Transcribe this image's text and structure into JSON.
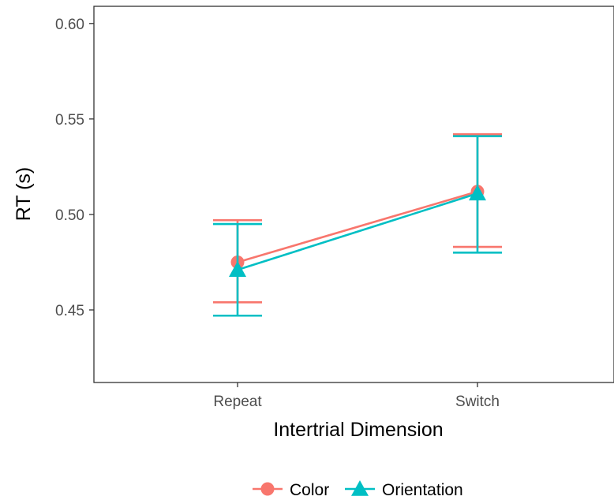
{
  "chart_data": {
    "type": "line",
    "xlabel": "Intertrial Dimension",
    "ylabel": "RT (s)",
    "categories": [
      "Repeat",
      "Switch"
    ],
    "ylim": [
      0.412,
      0.609
    ],
    "yticks": [
      0.45,
      0.5,
      0.55,
      0.6
    ],
    "ytick_labels": [
      "0.45",
      "0.50",
      "0.55",
      "0.60"
    ],
    "grid": false,
    "legend_position": "bottom",
    "series": [
      {
        "name": "Color",
        "color": "#F8766D",
        "marker": "circle",
        "values": [
          0.475,
          0.512
        ],
        "lower": [
          0.454,
          0.483
        ],
        "upper": [
          0.497,
          0.542
        ]
      },
      {
        "name": "Orientation",
        "color": "#00BFC4",
        "marker": "triangle",
        "values": [
          0.471,
          0.511
        ],
        "lower": [
          0.447,
          0.48
        ],
        "upper": [
          0.495,
          0.541
        ]
      }
    ]
  }
}
